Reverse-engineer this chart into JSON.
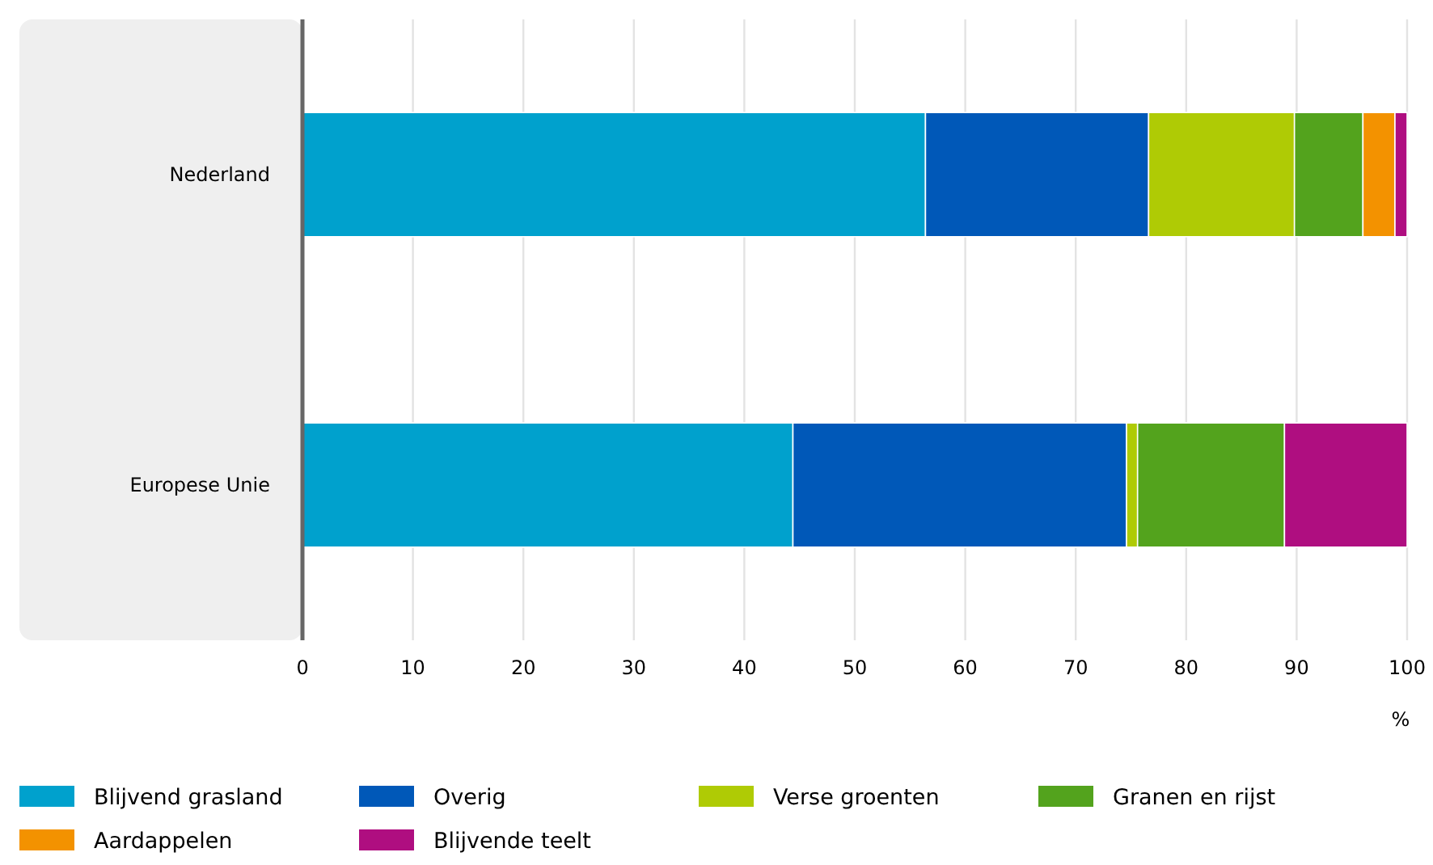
{
  "chart_data": {
    "type": "bar",
    "orientation": "horizontal",
    "stacked": true,
    "categories": [
      "Nederland",
      "Europese Unie"
    ],
    "xlabel": "%",
    "xlim": [
      0,
      100
    ],
    "xticks": [
      0,
      10,
      20,
      30,
      40,
      50,
      60,
      70,
      80,
      90,
      100
    ],
    "grid": "x",
    "legend": "bottom",
    "series": [
      {
        "name": "Blijvend grasland",
        "color": "#00a1cd",
        "values": [
          56.4,
          44.4
        ]
      },
      {
        "name": "Overig",
        "color": "#0058b8",
        "values": [
          20.2,
          30.2
        ]
      },
      {
        "name": "Verse groenten",
        "color": "#afcb05",
        "values": [
          13.2,
          1.0
        ]
      },
      {
        "name": "Granen en rijst",
        "color": "#53a31d",
        "values": [
          6.2,
          13.3
        ]
      },
      {
        "name": "Aardappelen",
        "color": "#f39200",
        "values": [
          2.9,
          null
        ]
      },
      {
        "name": "Blijvende teelt",
        "color": "#af0e80",
        "values": [
          1.1,
          11.1
        ]
      }
    ]
  }
}
